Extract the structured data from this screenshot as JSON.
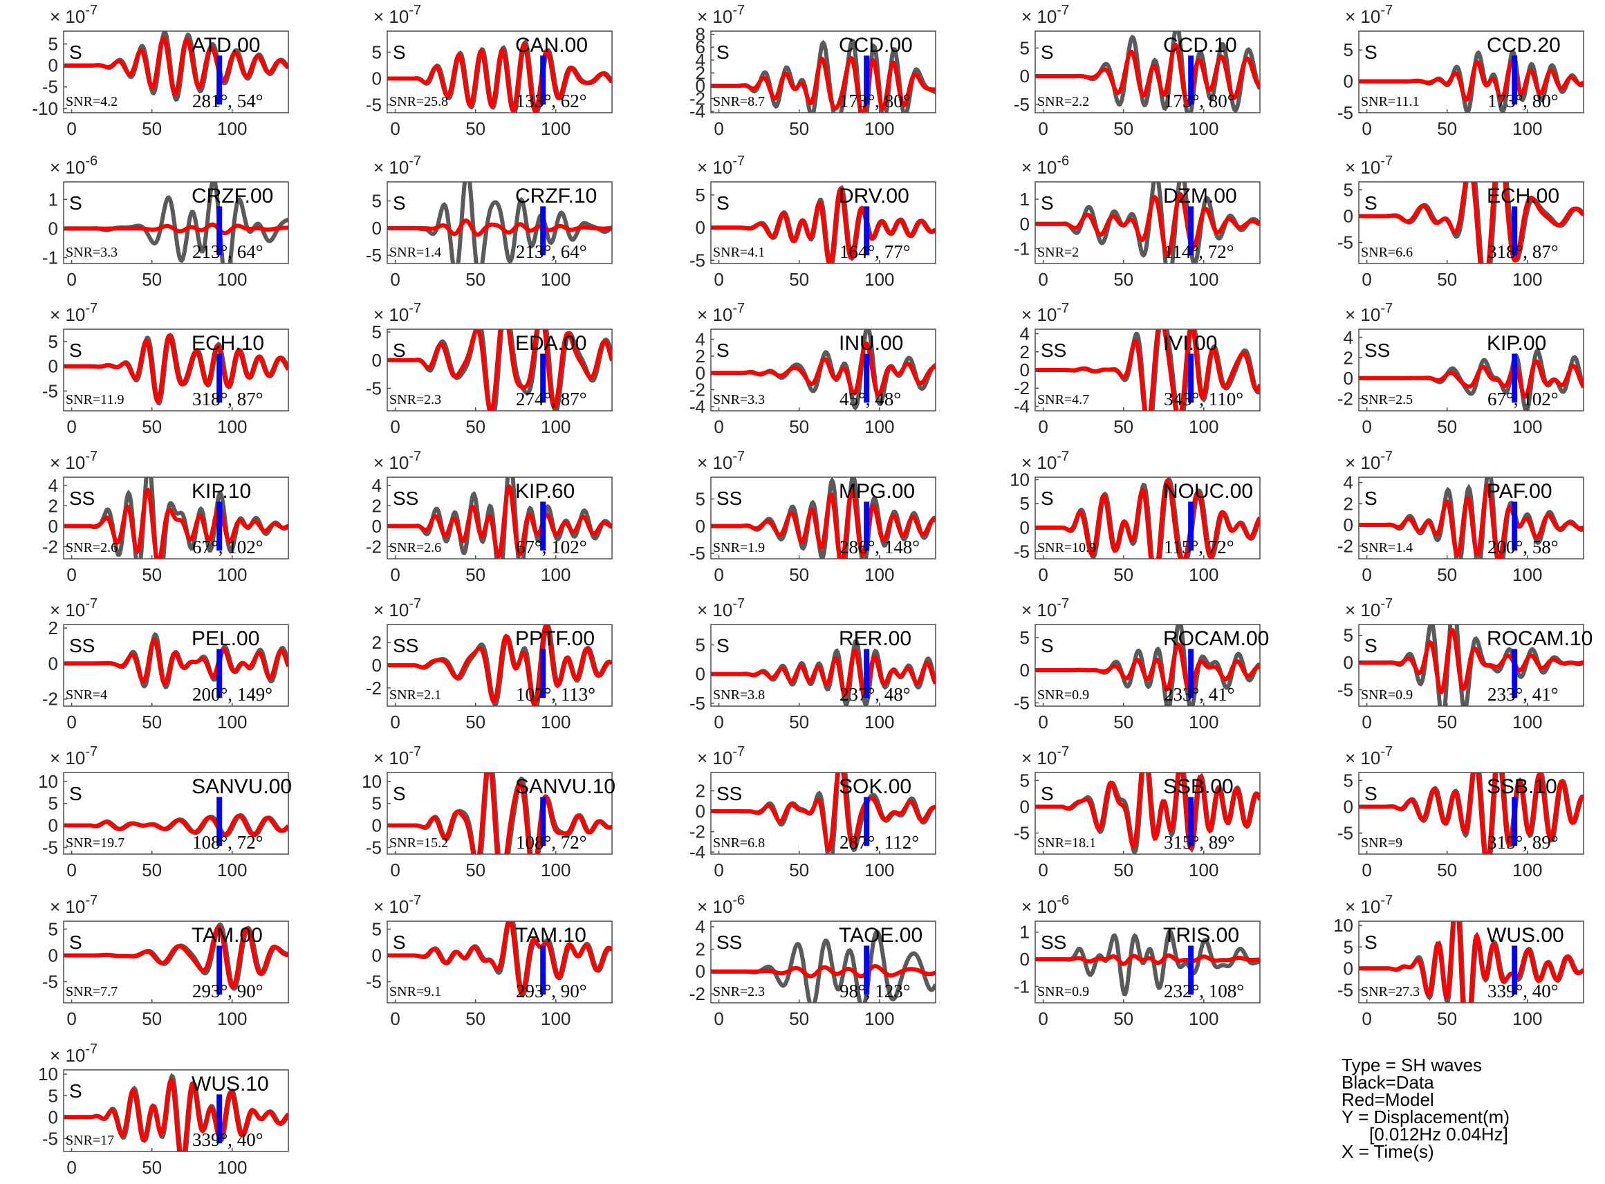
{
  "legend": {
    "type": "Type = SH waves",
    "black": "Black=Data",
    "red": "Red=Model",
    "y": "Y = Displacement(m)",
    "band": "[0.012Hz 0.04Hz]",
    "x": "X = Time(s)"
  },
  "colors": {
    "data": "#5a5a5a",
    "model": "#ff0000",
    "marker": "#0000ff",
    "axes": "#4d4d4d"
  },
  "chart_data": [
    {
      "type": "line",
      "station": "ATD.00",
      "phase": "S",
      "snr": "SNR=4.2",
      "angles": "281°, 54°",
      "exponent": "-7",
      "yticks": [
        5,
        0,
        -5,
        -10
      ],
      "ylim": [
        -11,
        8
      ],
      "xticks": [
        0,
        50,
        100
      ],
      "xlim": [
        -5,
        135
      ],
      "seed": 1,
      "data_amp": 0.9,
      "model_amp": 0.75
    },
    {
      "type": "line",
      "station": "CAN.00",
      "phase": "S",
      "snr": "SNR=25.8",
      "angles": "133°, 62°",
      "exponent": "-7",
      "yticks": [
        5,
        0,
        -5
      ],
      "ylim": [
        -6.5,
        9
      ],
      "xticks": [
        0,
        50,
        100
      ],
      "xlim": [
        -5,
        135
      ],
      "seed": 2,
      "data_amp": 0.9,
      "model_amp": 0.85
    },
    {
      "type": "line",
      "station": "CCD.00",
      "phase": "S",
      "snr": "SNR=8.7",
      "angles": "173°, 80°",
      "exponent": "-7",
      "yticks": [
        8,
        6,
        4,
        2,
        0,
        -2,
        -4
      ],
      "ylim": [
        -4.2,
        8.5
      ],
      "xticks": [
        0,
        50,
        100
      ],
      "xlim": [
        -5,
        135
      ],
      "seed": 3,
      "data_amp": 0.95,
      "model_amp": 0.6
    },
    {
      "type": "line",
      "station": "CCD.10",
      "phase": "S",
      "snr": "SNR=2.2",
      "angles": "173°, 80°",
      "exponent": "-7",
      "yticks": [
        5,
        0,
        -5
      ],
      "ylim": [
        -6.5,
        8
      ],
      "xticks": [
        0,
        50,
        100
      ],
      "xlim": [
        -5,
        135
      ],
      "seed": 4,
      "data_amp": 0.95,
      "model_amp": 0.6
    },
    {
      "type": "line",
      "station": "CCD.20",
      "phase": "S",
      "snr": "SNR=11.1",
      "angles": "173°, 80°",
      "exponent": "-7",
      "yticks": [
        5,
        0,
        -5
      ],
      "ylim": [
        -5,
        8
      ],
      "xticks": [
        0,
        50,
        100
      ],
      "xlim": [
        -5,
        135
      ],
      "seed": 5,
      "data_amp": 0.95,
      "model_amp": 0.6
    },
    {
      "type": "line",
      "station": "CRZF.00",
      "phase": "S",
      "snr": "SNR=3.3",
      "angles": "213°, 64°",
      "exponent": "-6",
      "yticks": [
        1,
        0,
        -1
      ],
      "ylim": [
        -1.2,
        1.6
      ],
      "xticks": [
        0,
        50,
        100
      ],
      "xlim": [
        -5,
        135
      ],
      "seed": 6,
      "data_amp": 0.95,
      "model_amp": 0.08
    },
    {
      "type": "line",
      "station": "CRZF.10",
      "phase": "S",
      "snr": "SNR=1.4",
      "angles": "213°, 64°",
      "exponent": "-7",
      "yticks": [
        5,
        0,
        -5
      ],
      "ylim": [
        -6.5,
        8.5
      ],
      "xticks": [
        0,
        50,
        100
      ],
      "xlim": [
        -5,
        135
      ],
      "seed": 7,
      "data_amp": 0.9,
      "model_amp": 0.12
    },
    {
      "type": "line",
      "station": "DRV.00",
      "phase": "S",
      "snr": "SNR=4.1",
      "angles": "164°, 77°",
      "exponent": "-7",
      "yticks": [
        5,
        0,
        -5
      ],
      "ylim": [
        -5.5,
        7
      ],
      "xticks": [
        0,
        50,
        100
      ],
      "xlim": [
        -5,
        135
      ],
      "seed": 8,
      "data_amp": 0.9,
      "model_amp": 0.85
    },
    {
      "type": "line",
      "station": "DZM.00",
      "phase": "S",
      "snr": "SNR=2",
      "angles": "114°, 72°",
      "exponent": "-6",
      "yticks": [
        1,
        0,
        -1
      ],
      "ylim": [
        -1.6,
        1.7
      ],
      "xticks": [
        0,
        50,
        100
      ],
      "xlim": [
        -5,
        135
      ],
      "seed": 9,
      "data_amp": 0.9,
      "model_amp": 0.5
    },
    {
      "type": "line",
      "station": "ECH.00",
      "phase": "S",
      "snr": "SNR=6.6",
      "angles": "318°, 87°",
      "exponent": "-7",
      "yticks": [
        5,
        0,
        -5
      ],
      "ylim": [
        -9,
        6.5
      ],
      "xticks": [
        0,
        50,
        100
      ],
      "xlim": [
        -5,
        135
      ],
      "seed": 10,
      "data_amp": 0.9,
      "model_amp": 0.85
    },
    {
      "type": "line",
      "station": "ECH.10",
      "phase": "S",
      "snr": "SNR=11.9",
      "angles": "318°, 87°",
      "exponent": "-7",
      "yticks": [
        5,
        0,
        -5
      ],
      "ylim": [
        -9,
        7.5
      ],
      "xticks": [
        0,
        50,
        100
      ],
      "xlim": [
        -5,
        135
      ],
      "seed": 11,
      "data_amp": 0.9,
      "model_amp": 0.85
    },
    {
      "type": "line",
      "station": "EDA.00",
      "phase": "S",
      "snr": "SNR=2.3",
      "angles": "274°, 87°",
      "exponent": "-7",
      "yticks": [
        5,
        0,
        -5
      ],
      "ylim": [
        -9,
        5.5
      ],
      "xticks": [
        0,
        50,
        100
      ],
      "xlim": [
        -5,
        135
      ],
      "seed": 12,
      "data_amp": 0.9,
      "model_amp": 0.8
    },
    {
      "type": "line",
      "station": "INU.00",
      "phase": "S",
      "snr": "SNR=3.3",
      "angles": "45°, 48°",
      "exponent": "-7",
      "yticks": [
        4,
        2,
        0,
        -2,
        -4
      ],
      "ylim": [
        -4.5,
        5.2
      ],
      "xticks": [
        0,
        50,
        100
      ],
      "xlim": [
        -5,
        135
      ],
      "seed": 13,
      "data_amp": 0.7,
      "model_amp": 0.45
    },
    {
      "type": "line",
      "station": "IVI.00",
      "phase": "SS",
      "snr": "SNR=4.7",
      "angles": "343°, 110°",
      "exponent": "-7",
      "yticks": [
        4,
        2,
        0,
        -2,
        -4
      ],
      "ylim": [
        -4.5,
        4.5
      ],
      "xticks": [
        0,
        50,
        100
      ],
      "xlim": [
        -5,
        135
      ],
      "seed": 14,
      "data_amp": 0.85,
      "model_amp": 0.75
    },
    {
      "type": "line",
      "station": "KIP.00",
      "phase": "SS",
      "snr": "SNR=2.5",
      "angles": "67°, 102°",
      "exponent": "-7",
      "yticks": [
        4,
        2,
        0,
        -2
      ],
      "ylim": [
        -3.2,
        4.8
      ],
      "xticks": [
        0,
        50,
        100
      ],
      "xlim": [
        -5,
        135
      ],
      "seed": 15,
      "data_amp": 0.85,
      "model_amp": 0.5
    },
    {
      "type": "line",
      "station": "KIP.10",
      "phase": "SS",
      "snr": "SNR=2.6",
      "angles": "67°, 102°",
      "exponent": "-7",
      "yticks": [
        4,
        2,
        0,
        -2
      ],
      "ylim": [
        -3.2,
        4.8
      ],
      "xticks": [
        0,
        50,
        100
      ],
      "xlim": [
        -5,
        135
      ],
      "seed": 16,
      "data_amp": 0.85,
      "model_amp": 0.5
    },
    {
      "type": "line",
      "station": "KIP.60",
      "phase": "SS",
      "snr": "SNR=2.6",
      "angles": "67°, 102°",
      "exponent": "-7",
      "yticks": [
        4,
        2,
        0,
        -2
      ],
      "ylim": [
        -3.2,
        4.8
      ],
      "xticks": [
        0,
        50,
        100
      ],
      "xlim": [
        -5,
        135
      ],
      "seed": 17,
      "data_amp": 0.85,
      "model_amp": 0.5
    },
    {
      "type": "line",
      "station": "MPG.00",
      "phase": "SS",
      "snr": "SNR=1.9",
      "angles": "286°, 148°",
      "exponent": "-7",
      "yticks": [
        5,
        0,
        -5
      ],
      "ylim": [
        -6,
        9
      ],
      "xticks": [
        0,
        50,
        100
      ],
      "xlim": [
        -5,
        135
      ],
      "seed": 18,
      "data_amp": 0.85,
      "model_amp": 0.6
    },
    {
      "type": "line",
      "station": "NOUC.00",
      "phase": "S",
      "snr": "SNR=10.9",
      "angles": "115°, 72°",
      "exponent": "-7",
      "yticks": [
        10,
        5,
        0,
        -5
      ],
      "ylim": [
        -6.5,
        10.5
      ],
      "xticks": [
        0,
        50,
        100
      ],
      "xlim": [
        -5,
        135
      ],
      "seed": 19,
      "data_amp": 0.85,
      "model_amp": 0.8
    },
    {
      "type": "line",
      "station": "PAF.00",
      "phase": "S",
      "snr": "SNR=1.4",
      "angles": "200°, 58°",
      "exponent": "-7",
      "yticks": [
        4,
        2,
        0,
        -2
      ],
      "ylim": [
        -3.2,
        4.5
      ],
      "xticks": [
        0,
        50,
        100
      ],
      "xlim": [
        -5,
        135
      ],
      "seed": 20,
      "data_amp": 0.85,
      "model_amp": 0.6
    },
    {
      "type": "line",
      "station": "PEL.00",
      "phase": "SS",
      "snr": "SNR=4",
      "angles": "200°, 149°",
      "exponent": "-7",
      "yticks": [
        2,
        0,
        -2
      ],
      "ylim": [
        -2.4,
        2.2
      ],
      "xticks": [
        0,
        50,
        100
      ],
      "xlim": [
        -5,
        135
      ],
      "seed": 21,
      "data_amp": 0.85,
      "model_amp": 0.7
    },
    {
      "type": "line",
      "station": "PPTF.00",
      "phase": "SS",
      "snr": "SNR=2.1",
      "angles": "107°, 113°",
      "exponent": "-7",
      "yticks": [
        2,
        0,
        -2
      ],
      "ylim": [
        -3.6,
        3.6
      ],
      "xticks": [
        0,
        50,
        100
      ],
      "xlim": [
        -5,
        135
      ],
      "seed": 22,
      "data_amp": 0.85,
      "model_amp": 0.8
    },
    {
      "type": "line",
      "station": "RER.00",
      "phase": "S",
      "snr": "SNR=3.8",
      "angles": "237°, 48°",
      "exponent": "-7",
      "yticks": [
        5,
        0,
        -5
      ],
      "ylim": [
        -5.5,
        8.5
      ],
      "xticks": [
        0,
        50,
        100
      ],
      "xlim": [
        -5,
        135
      ],
      "seed": 23,
      "data_amp": 0.85,
      "model_amp": 0.6
    },
    {
      "type": "line",
      "station": "ROCAM.00",
      "phase": "S",
      "snr": "SNR=0.9",
      "angles": "233°, 41°",
      "exponent": "-7",
      "yticks": [
        5,
        0,
        -5
      ],
      "ylim": [
        -5.5,
        7
      ],
      "xticks": [
        0,
        50,
        100
      ],
      "xlim": [
        -5,
        135
      ],
      "seed": 24,
      "data_amp": 0.85,
      "model_amp": 0.45
    },
    {
      "type": "line",
      "station": "ROCAM.10",
      "phase": "S",
      "snr": "SNR=0.9",
      "angles": "233°, 41°",
      "exponent": "-7",
      "yticks": [
        5,
        0,
        -5
      ],
      "ylim": [
        -8,
        7
      ],
      "xticks": [
        0,
        50,
        100
      ],
      "xlim": [
        -5,
        135
      ],
      "seed": 25,
      "data_amp": 0.85,
      "model_amp": 0.45
    },
    {
      "type": "line",
      "station": "SANVU.00",
      "phase": "S",
      "snr": "SNR=19.7",
      "angles": "108°, 72°",
      "exponent": "-7",
      "yticks": [
        10,
        5,
        0,
        -5
      ],
      "ylim": [
        -6.5,
        12
      ],
      "xticks": [
        0,
        50,
        100
      ],
      "xlim": [
        -5,
        135
      ],
      "seed": 26,
      "data_amp": 0.9,
      "model_amp": 0.85
    },
    {
      "type": "line",
      "station": "SANVU.10",
      "phase": "S",
      "snr": "SNR=15.2",
      "angles": "108°, 72°",
      "exponent": "-7",
      "yticks": [
        10,
        5,
        0,
        -5
      ],
      "ylim": [
        -6.5,
        12
      ],
      "xticks": [
        0,
        50,
        100
      ],
      "xlim": [
        -5,
        135
      ],
      "seed": 27,
      "data_amp": 0.9,
      "model_amp": 0.85
    },
    {
      "type": "line",
      "station": "SOK.00",
      "phase": "SS",
      "snr": "SNR=6.8",
      "angles": "287°, 112°",
      "exponent": "-7",
      "yticks": [
        2,
        0,
        -2,
        -4
      ],
      "ylim": [
        -4.2,
        3.8
      ],
      "xticks": [
        0,
        50,
        100
      ],
      "xlim": [
        -5,
        135
      ],
      "seed": 28,
      "data_amp": 0.9,
      "model_amp": 0.7
    },
    {
      "type": "line",
      "station": "SSB.00",
      "phase": "S",
      "snr": "SNR=18.1",
      "angles": "315°, 89°",
      "exponent": "-7",
      "yticks": [
        5,
        0,
        -5
      ],
      "ylim": [
        -9,
        6.5
      ],
      "xticks": [
        0,
        50,
        100
      ],
      "xlim": [
        -5,
        135
      ],
      "seed": 29,
      "data_amp": 0.9,
      "model_amp": 0.85
    },
    {
      "type": "line",
      "station": "SSB.10",
      "phase": "S",
      "snr": "SNR=9",
      "angles": "315°, 89°",
      "exponent": "-7",
      "yticks": [
        5,
        0,
        -5
      ],
      "ylim": [
        -9,
        6.5
      ],
      "xticks": [
        0,
        50,
        100
      ],
      "xlim": [
        -5,
        135
      ],
      "seed": 30,
      "data_amp": 0.9,
      "model_amp": 0.85
    },
    {
      "type": "line",
      "station": "TAM.00",
      "phase": "S",
      "snr": "SNR=7.7",
      "angles": "293°, 90°",
      "exponent": "-7",
      "yticks": [
        5,
        0,
        -5
      ],
      "ylim": [
        -9,
        6.5
      ],
      "xticks": [
        0,
        50,
        100
      ],
      "xlim": [
        -5,
        135
      ],
      "seed": 31,
      "data_amp": 0.9,
      "model_amp": 0.85
    },
    {
      "type": "line",
      "station": "TAM.10",
      "phase": "S",
      "snr": "SNR=9.1",
      "angles": "293°, 90°",
      "exponent": "-7",
      "yticks": [
        5,
        0,
        -5
      ],
      "ylim": [
        -9,
        6.5
      ],
      "xticks": [
        0,
        50,
        100
      ],
      "xlim": [
        -5,
        135
      ],
      "seed": 32,
      "data_amp": 0.9,
      "model_amp": 0.85
    },
    {
      "type": "line",
      "station": "TAOE.00",
      "phase": "SS",
      "snr": "SNR=2.3",
      "angles": "98°, 123°",
      "exponent": "-6",
      "yticks": [
        4,
        2,
        0,
        -2
      ],
      "ylim": [
        -2.8,
        4.5
      ],
      "xticks": [
        0,
        50,
        100
      ],
      "xlim": [
        -5,
        135
      ],
      "seed": 33,
      "data_amp": 0.9,
      "model_amp": 0.12
    },
    {
      "type": "line",
      "station": "TRIS.00",
      "phase": "SS",
      "snr": "SNR=0.9",
      "angles": "232°, 108°",
      "exponent": "-6",
      "yticks": [
        1,
        0,
        -1
      ],
      "ylim": [
        -1.6,
        1.4
      ],
      "xticks": [
        0,
        50,
        100
      ],
      "xlim": [
        -5,
        135
      ],
      "seed": 34,
      "data_amp": 0.9,
      "model_amp": 0.12
    },
    {
      "type": "line",
      "station": "WUS.00",
      "phase": "S",
      "snr": "SNR=27.3",
      "angles": "339°, 40°",
      "exponent": "-7",
      "yticks": [
        10,
        5,
        0,
        -5
      ],
      "ylim": [
        -8,
        11
      ],
      "xticks": [
        0,
        50,
        100
      ],
      "xlim": [
        -5,
        135
      ],
      "seed": 35,
      "data_amp": 0.9,
      "model_amp": 0.85
    },
    {
      "type": "line",
      "station": "WUS.10",
      "phase": "S",
      "snr": "SNR=17",
      "angles": "339°, 40°",
      "exponent": "-7",
      "yticks": [
        10,
        5,
        0,
        -5
      ],
      "ylim": [
        -8,
        11
      ],
      "xticks": [
        0,
        50,
        100
      ],
      "xlim": [
        -5,
        135
      ],
      "seed": 36,
      "data_amp": 0.9,
      "model_amp": 0.85
    }
  ]
}
